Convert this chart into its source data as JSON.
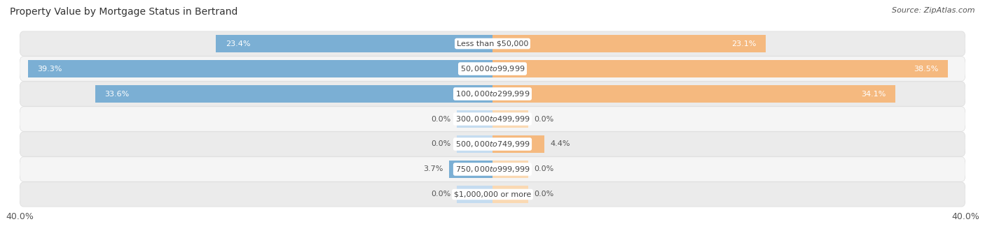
{
  "title": "Property Value by Mortgage Status in Bertrand",
  "source": "Source: ZipAtlas.com",
  "categories": [
    "Less than $50,000",
    "$50,000 to $99,999",
    "$100,000 to $299,999",
    "$300,000 to $499,999",
    "$500,000 to $749,999",
    "$750,000 to $999,999",
    "$1,000,000 or more"
  ],
  "without_mortgage": [
    23.4,
    39.3,
    33.6,
    0.0,
    0.0,
    3.7,
    0.0
  ],
  "with_mortgage": [
    23.1,
    38.5,
    34.1,
    0.0,
    4.4,
    0.0,
    0.0
  ],
  "without_mortgage_color": "#7BAFD4",
  "with_mortgage_color": "#F5B97F",
  "without_mortgage_color_light": "#C5DCF0",
  "with_mortgage_color_light": "#FAD9B3",
  "row_bg_color": "#EBEBEB",
  "row_bg_color_alt": "#F5F5F5",
  "xlim": 40.0,
  "min_stub": 3.0,
  "label_fontsize": 8.0,
  "title_fontsize": 10,
  "legend_fontsize": 9,
  "axis_label_fontsize": 9,
  "bar_height": 0.72
}
